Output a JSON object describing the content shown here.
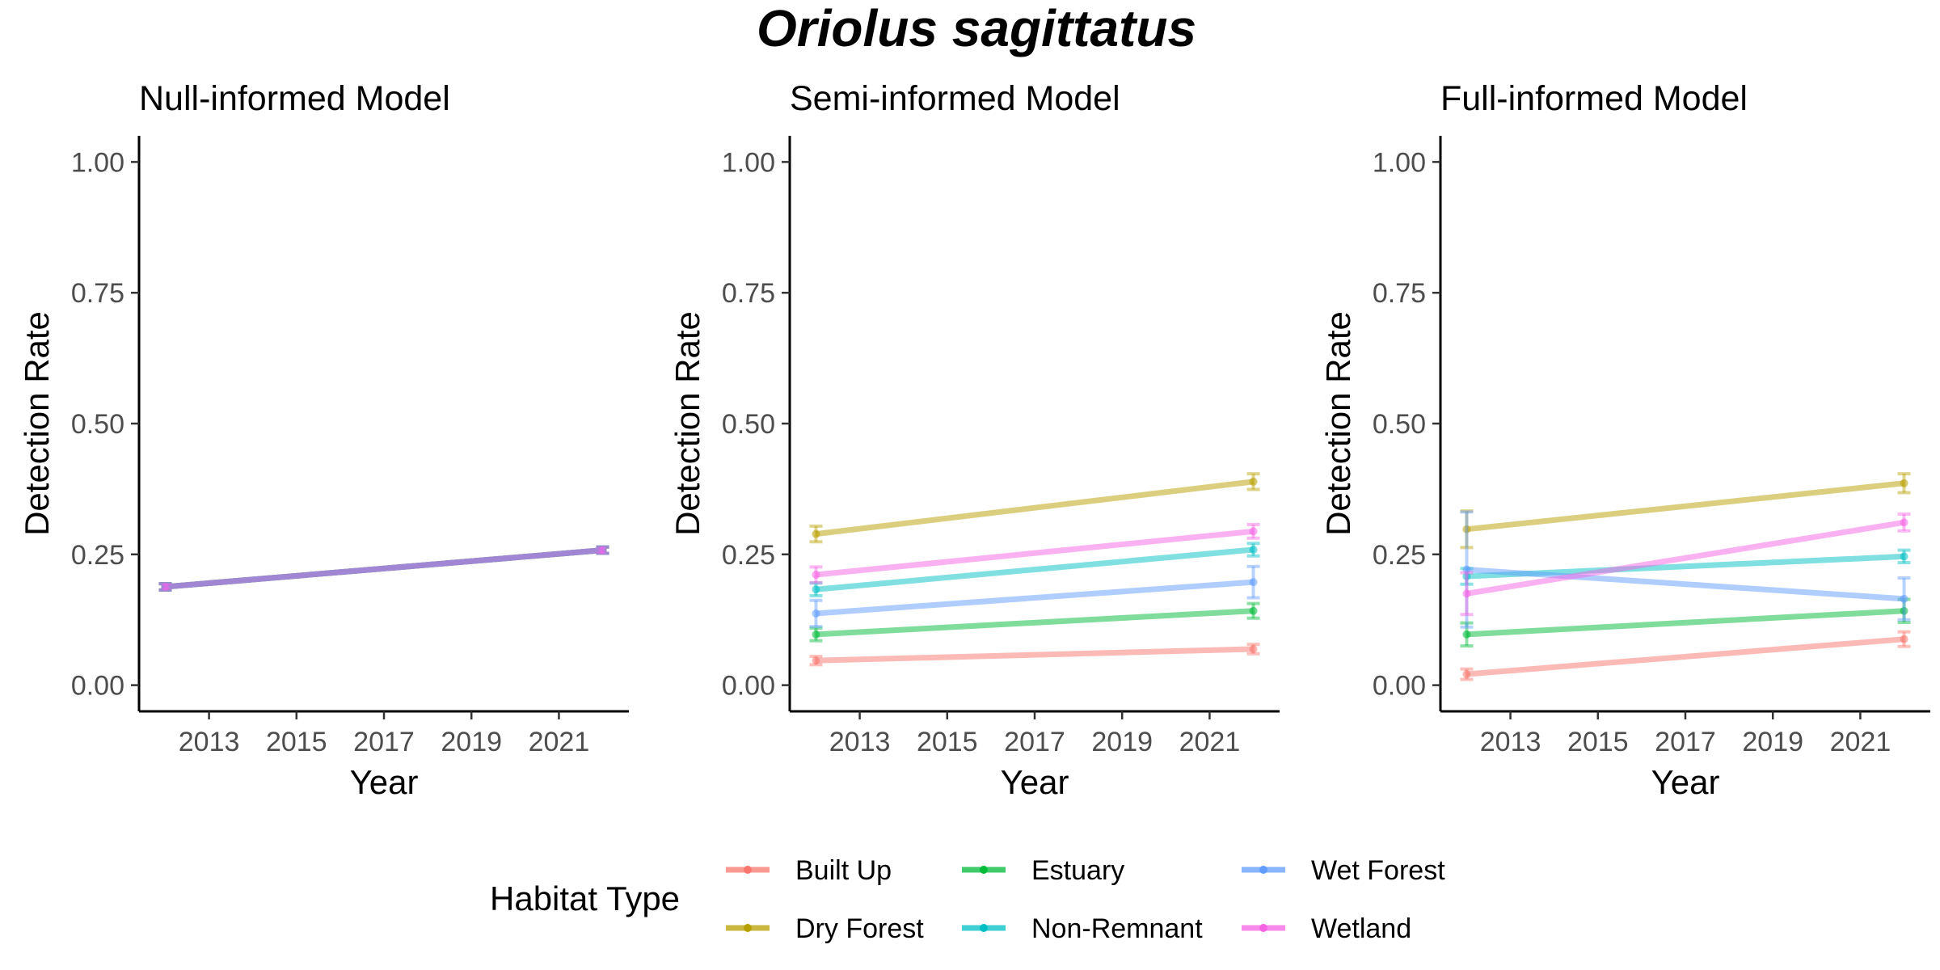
{
  "title": "Oriolus sagittatus",
  "legend": {
    "title": "Habitat Type",
    "items": [
      {
        "label": "Built Up",
        "color": "#F8766D"
      },
      {
        "label": "Dry Forest",
        "color": "#B79F00"
      },
      {
        "label": "Estuary",
        "color": "#00BA38"
      },
      {
        "label": "Non-Remnant",
        "color": "#00BFC4"
      },
      {
        "label": "Wet Forest",
        "color": "#619CFF"
      },
      {
        "label": "Wetland",
        "color": "#F564E3"
      }
    ]
  },
  "chart_data": [
    {
      "type": "line",
      "title": "Null-informed Model",
      "xlabel": "Year",
      "ylabel": "Detection Rate",
      "xlim": [
        2011.4,
        2022.6
      ],
      "ylim": [
        -0.05,
        1.05
      ],
      "x_ticks": [
        "2013",
        "2015",
        "2017",
        "2019",
        "2021"
      ],
      "y_ticks": [
        "0.00",
        "0.25",
        "0.50",
        "0.75",
        "1.00"
      ],
      "grid": false,
      "series": [
        {
          "name": "Built Up",
          "color": "#F8766D",
          "x": [
            2012,
            2022
          ],
          "y": [
            0.188,
            0.258
          ],
          "err": [
            0.006,
            0.006
          ]
        },
        {
          "name": "Dry Forest",
          "color": "#B79F00",
          "x": [
            2012,
            2022
          ],
          "y": [
            0.188,
            0.258
          ],
          "err": [
            0.006,
            0.006
          ]
        },
        {
          "name": "Estuary",
          "color": "#00BA38",
          "x": [
            2012,
            2022
          ],
          "y": [
            0.188,
            0.258
          ],
          "err": [
            0.006,
            0.006
          ]
        },
        {
          "name": "Non-Remnant",
          "color": "#00BFC4",
          "x": [
            2012,
            2022
          ],
          "y": [
            0.188,
            0.258
          ],
          "err": [
            0.006,
            0.006
          ]
        },
        {
          "name": "Wet Forest",
          "color": "#619CFF",
          "x": [
            2012,
            2022
          ],
          "y": [
            0.188,
            0.258
          ],
          "err": [
            0.006,
            0.006
          ]
        },
        {
          "name": "Wetland",
          "color": "#F564E3",
          "x": [
            2012,
            2022
          ],
          "y": [
            0.188,
            0.258
          ],
          "err": [
            0.006,
            0.006
          ]
        }
      ]
    },
    {
      "type": "line",
      "title": "Semi-informed Model",
      "xlabel": "Year",
      "ylabel": "Detection Rate",
      "xlim": [
        2011.4,
        2022.6
      ],
      "ylim": [
        -0.05,
        1.05
      ],
      "x_ticks": [
        "2013",
        "2015",
        "2017",
        "2019",
        "2021"
      ],
      "y_ticks": [
        "0.00",
        "0.25",
        "0.50",
        "0.75",
        "1.00"
      ],
      "grid": false,
      "series": [
        {
          "name": "Built Up",
          "color": "#F8766D",
          "x": [
            2012,
            2022
          ],
          "y": [
            0.047,
            0.069
          ],
          "err": [
            0.008,
            0.009
          ]
        },
        {
          "name": "Dry Forest",
          "color": "#B79F00",
          "x": [
            2012,
            2022
          ],
          "y": [
            0.289,
            0.389
          ],
          "err": [
            0.015,
            0.015
          ]
        },
        {
          "name": "Estuary",
          "color": "#00BA38",
          "x": [
            2012,
            2022
          ],
          "y": [
            0.097,
            0.142
          ],
          "err": [
            0.012,
            0.014
          ]
        },
        {
          "name": "Non-Remnant",
          "color": "#00BFC4",
          "x": [
            2012,
            2022
          ],
          "y": [
            0.183,
            0.259
          ],
          "err": [
            0.012,
            0.012
          ]
        },
        {
          "name": "Wet Forest",
          "color": "#619CFF",
          "x": [
            2012,
            2022
          ],
          "y": [
            0.137,
            0.197
          ],
          "err": [
            0.025,
            0.03
          ]
        },
        {
          "name": "Wetland",
          "color": "#F564E3",
          "x": [
            2012,
            2022
          ],
          "y": [
            0.211,
            0.294
          ],
          "err": [
            0.015,
            0.013
          ]
        }
      ]
    },
    {
      "type": "line",
      "title": "Full-informed Model",
      "xlabel": "Year",
      "ylabel": "Detection Rate",
      "xlim": [
        2011.4,
        2022.6
      ],
      "ylim": [
        -0.05,
        1.05
      ],
      "x_ticks": [
        "2013",
        "2015",
        "2017",
        "2019",
        "2021"
      ],
      "y_ticks": [
        "0.00",
        "0.25",
        "0.50",
        "0.75",
        "1.00"
      ],
      "grid": false,
      "series": [
        {
          "name": "Built Up",
          "color": "#F8766D",
          "x": [
            2012,
            2022
          ],
          "y": [
            0.021,
            0.088
          ],
          "err": [
            0.01,
            0.014
          ]
        },
        {
          "name": "Dry Forest",
          "color": "#B79F00",
          "x": [
            2012,
            2022
          ],
          "y": [
            0.298,
            0.386
          ],
          "err": [
            0.035,
            0.018
          ]
        },
        {
          "name": "Estuary",
          "color": "#00BA38",
          "x": [
            2012,
            2022
          ],
          "y": [
            0.097,
            0.142
          ],
          "err": [
            0.022,
            0.022
          ]
        },
        {
          "name": "Non-Remnant",
          "color": "#00BFC4",
          "x": [
            2012,
            2022
          ],
          "y": [
            0.208,
            0.246
          ],
          "err": [
            0.015,
            0.012
          ]
        },
        {
          "name": "Wet Forest",
          "color": "#619CFF",
          "x": [
            2012,
            2022
          ],
          "y": [
            0.221,
            0.165
          ],
          "err": [
            0.11,
            0.04
          ]
        },
        {
          "name": "Wetland",
          "color": "#F564E3",
          "x": [
            2012,
            2022
          ],
          "y": [
            0.175,
            0.311
          ],
          "err": [
            0.04,
            0.016
          ]
        }
      ]
    }
  ]
}
